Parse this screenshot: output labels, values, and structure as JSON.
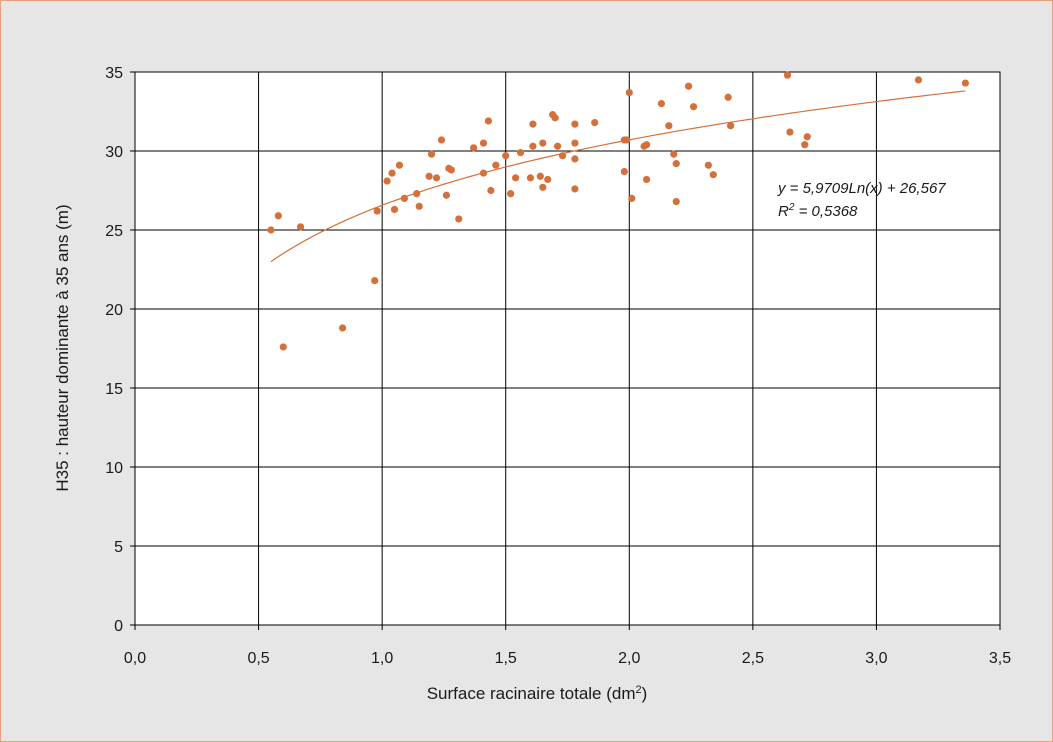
{
  "chart_data": {
    "type": "scatter",
    "xlabel_main": "Surface racinaire totale (dm",
    "xlabel_sup": "2",
    "xlabel_end": ")",
    "ylabel": "H35 : hauteur dominante à 35 ans (m)",
    "xlim": [
      0,
      3.5
    ],
    "ylim": [
      0,
      35
    ],
    "x_ticks": [
      "0,0",
      "0,5",
      "1,0",
      "1,5",
      "2,0",
      "2,5",
      "3,0",
      "3,5"
    ],
    "y_ticks": [
      "0",
      "5",
      "10",
      "15",
      "20",
      "25",
      "30",
      "35"
    ],
    "grid": true,
    "marker_color": "#d4703a",
    "trend_color": "#d4703a",
    "trendline": {
      "type": "logarithmic",
      "a": 5.9709,
      "b": 26.567,
      "x_range": [
        0.55,
        3.36
      ],
      "equation_label": "y = 5,9709Ln(x) + 26,567",
      "r2_prefix": "R",
      "r2_sup": "2",
      "r2_rest": " = 0,5368"
    },
    "points": [
      [
        0.55,
        25.0
      ],
      [
        0.58,
        25.9
      ],
      [
        0.6,
        17.6
      ],
      [
        0.67,
        25.2
      ],
      [
        0.84,
        18.8
      ],
      [
        0.97,
        21.8
      ],
      [
        0.98,
        26.2
      ],
      [
        1.02,
        28.1
      ],
      [
        1.04,
        28.6
      ],
      [
        1.05,
        26.3
      ],
      [
        1.07,
        29.1
      ],
      [
        1.09,
        27.0
      ],
      [
        1.14,
        27.3
      ],
      [
        1.15,
        26.5
      ],
      [
        1.19,
        28.4
      ],
      [
        1.2,
        29.8
      ],
      [
        1.22,
        28.3
      ],
      [
        1.24,
        30.7
      ],
      [
        1.26,
        27.2
      ],
      [
        1.27,
        28.9
      ],
      [
        1.28,
        28.8
      ],
      [
        1.31,
        25.7
      ],
      [
        1.37,
        30.2
      ],
      [
        1.41,
        30.5
      ],
      [
        1.41,
        28.6
      ],
      [
        1.43,
        31.9
      ],
      [
        1.44,
        27.5
      ],
      [
        1.46,
        29.1
      ],
      [
        1.5,
        29.7
      ],
      [
        1.52,
        27.3
      ],
      [
        1.54,
        28.3
      ],
      [
        1.56,
        29.9
      ],
      [
        1.6,
        28.3
      ],
      [
        1.61,
        30.3
      ],
      [
        1.61,
        31.7
      ],
      [
        1.64,
        28.4
      ],
      [
        1.65,
        30.5
      ],
      [
        1.65,
        27.7
      ],
      [
        1.67,
        28.2
      ],
      [
        1.69,
        32.3
      ],
      [
        1.7,
        32.1
      ],
      [
        1.71,
        30.3
      ],
      [
        1.73,
        29.7
      ],
      [
        1.78,
        31.7
      ],
      [
        1.78,
        30.5
      ],
      [
        1.78,
        29.5
      ],
      [
        1.78,
        27.6
      ],
      [
        1.86,
        31.8
      ],
      [
        1.98,
        30.7
      ],
      [
        1.98,
        28.7
      ],
      [
        1.99,
        30.7
      ],
      [
        2.0,
        33.7
      ],
      [
        2.01,
        27.0
      ],
      [
        2.06,
        30.3
      ],
      [
        2.07,
        30.4
      ],
      [
        2.07,
        28.2
      ],
      [
        2.13,
        33.0
      ],
      [
        2.16,
        31.6
      ],
      [
        2.18,
        29.8
      ],
      [
        2.19,
        29.2
      ],
      [
        2.19,
        26.8
      ],
      [
        2.24,
        34.1
      ],
      [
        2.26,
        32.8
      ],
      [
        2.32,
        29.1
      ],
      [
        2.34,
        28.5
      ],
      [
        2.4,
        33.4
      ],
      [
        2.41,
        31.6
      ],
      [
        2.64,
        34.8
      ],
      [
        2.65,
        31.2
      ],
      [
        2.71,
        30.4
      ],
      [
        2.72,
        30.9
      ],
      [
        3.17,
        34.5
      ],
      [
        3.36,
        34.3
      ]
    ]
  }
}
